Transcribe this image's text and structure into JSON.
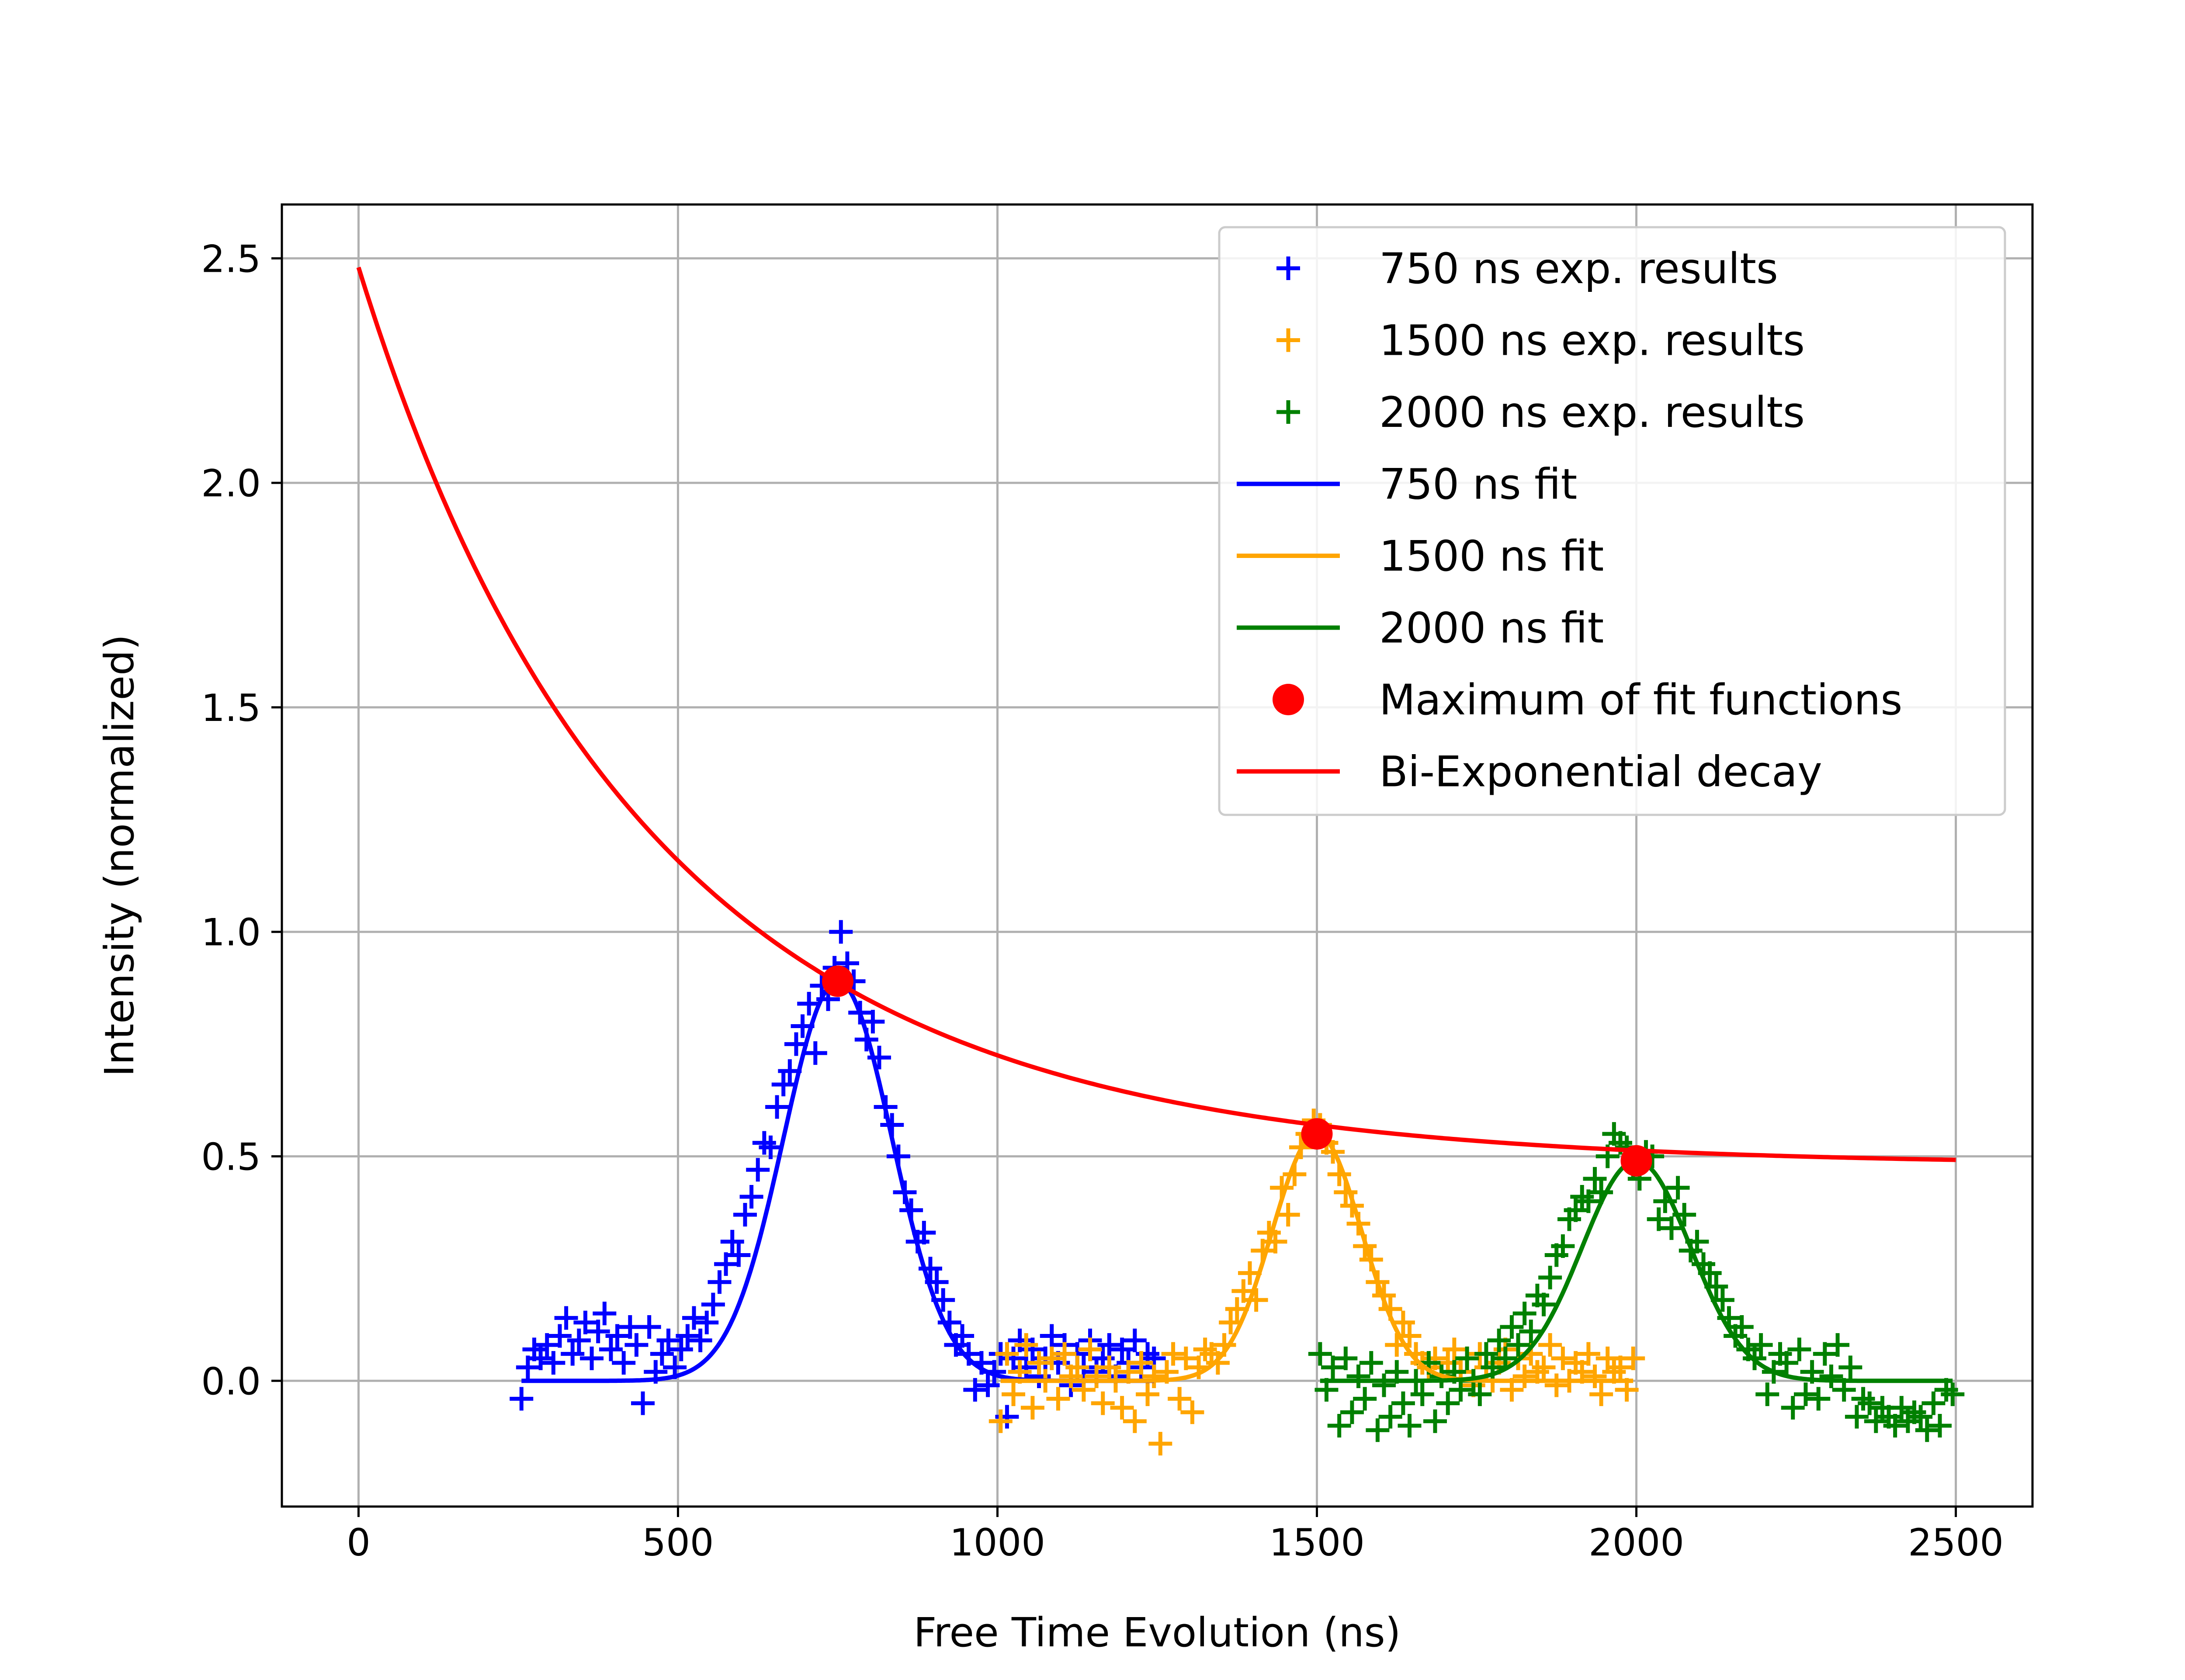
{
  "chart_data": {
    "type": "scatter",
    "title": "",
    "xlabel": "Free Time Evolution (ns)",
    "ylabel": "Intensity (normalized)",
    "xlim": [
      -120,
      2620
    ],
    "ylim": [
      -0.28,
      2.62
    ],
    "xticks": [
      0,
      500,
      1000,
      1500,
      2000,
      2500
    ],
    "xtick_labels": [
      "0",
      "500",
      "1000",
      "1500",
      "2000",
      "2500"
    ],
    "yticks": [
      0.0,
      0.5,
      1.0,
      1.5,
      2.0,
      2.5
    ],
    "ytick_labels": [
      "0.0",
      "0.5",
      "1.0",
      "1.5",
      "2.0",
      "2.5"
    ],
    "grid": true,
    "legend_position": "upper right",
    "series": [
      {
        "name": "750 ns exp. results",
        "kind": "scatter",
        "marker": "plus",
        "color": "#0000ff",
        "x": [
          255,
          265,
          275,
          285,
          295,
          305,
          315,
          325,
          335,
          345,
          355,
          365,
          375,
          385,
          395,
          405,
          415,
          425,
          435,
          445,
          455,
          465,
          475,
          485,
          495,
          505,
          515,
          525,
          535,
          545,
          555,
          565,
          575,
          585,
          595,
          605,
          615,
          625,
          635,
          645,
          655,
          665,
          675,
          685,
          695,
          705,
          715,
          725,
          735,
          745,
          755,
          765,
          775,
          785,
          795,
          805,
          815,
          825,
          835,
          845,
          855,
          865,
          875,
          885,
          895,
          905,
          915,
          925,
          935,
          945,
          955,
          965,
          975,
          985,
          995,
          1005,
          1015,
          1025,
          1035,
          1045,
          1055,
          1065,
          1075,
          1085,
          1095,
          1105,
          1115,
          1125,
          1135,
          1145,
          1155,
          1165,
          1175,
          1185,
          1195,
          1205,
          1215,
          1225,
          1235,
          1245
        ],
        "y": [
          -0.04,
          0.03,
          0.07,
          0.05,
          0.08,
          0.04,
          0.1,
          0.14,
          0.06,
          0.09,
          0.13,
          0.05,
          0.11,
          0.15,
          0.07,
          0.1,
          0.04,
          0.12,
          0.08,
          -0.05,
          0.12,
          0.02,
          0.06,
          0.09,
          0.03,
          0.07,
          0.1,
          0.14,
          0.09,
          0.13,
          0.17,
          0.22,
          0.26,
          0.31,
          0.28,
          0.37,
          0.41,
          0.47,
          0.53,
          0.52,
          0.61,
          0.66,
          0.69,
          0.75,
          0.79,
          0.84,
          0.73,
          0.88,
          0.85,
          0.92,
          1.0,
          0.93,
          0.89,
          0.82,
          0.76,
          0.8,
          0.72,
          0.61,
          0.57,
          0.5,
          0.42,
          0.38,
          0.31,
          0.33,
          0.25,
          0.22,
          0.18,
          0.13,
          0.08,
          0.1,
          0.06,
          -0.02,
          0.04,
          -0.01,
          0.02,
          0.06,
          -0.08,
          0.05,
          0.09,
          0.03,
          0.07,
          0.01,
          0.05,
          0.1,
          0.04,
          0.08,
          -0.01,
          0.06,
          0.03,
          0.09,
          0.02,
          0.05,
          0.08,
          0.01,
          0.07,
          0.04,
          0.09,
          0.03,
          0.06,
          0.05
        ]
      },
      {
        "name": "1500 ns exp. results",
        "kind": "scatter",
        "marker": "plus",
        "color": "#ffa500",
        "x": [
          1005,
          1015,
          1025,
          1035,
          1045,
          1055,
          1065,
          1075,
          1085,
          1095,
          1105,
          1115,
          1125,
          1135,
          1145,
          1155,
          1165,
          1175,
          1185,
          1195,
          1205,
          1215,
          1225,
          1235,
          1245,
          1255,
          1265,
          1275,
          1285,
          1295,
          1305,
          1315,
          1325,
          1335,
          1345,
          1355,
          1365,
          1375,
          1385,
          1395,
          1405,
          1415,
          1425,
          1435,
          1445,
          1455,
          1465,
          1475,
          1485,
          1495,
          1505,
          1515,
          1525,
          1535,
          1545,
          1555,
          1565,
          1575,
          1585,
          1595,
          1605,
          1615,
          1625,
          1635,
          1645,
          1655,
          1665,
          1675,
          1685,
          1695,
          1705,
          1715,
          1725,
          1735,
          1745,
          1755,
          1765,
          1775,
          1785,
          1795,
          1805,
          1815,
          1825,
          1835,
          1845,
          1855,
          1865,
          1875,
          1885,
          1895,
          1905,
          1915,
          1925,
          1935,
          1945,
          1955,
          1965,
          1975,
          1985,
          1995
        ],
        "y": [
          -0.09,
          0.06,
          -0.03,
          0.02,
          0.08,
          -0.06,
          0.04,
          0.0,
          0.05,
          -0.04,
          0.06,
          0.01,
          0.03,
          -0.02,
          0.07,
          0.01,
          -0.05,
          0.03,
          0.0,
          -0.06,
          0.02,
          -0.09,
          0.04,
          -0.03,
          0.01,
          -0.14,
          0.02,
          0.06,
          -0.04,
          0.05,
          -0.07,
          0.03,
          0.07,
          0.06,
          0.04,
          0.08,
          0.13,
          0.16,
          0.2,
          0.24,
          0.18,
          0.29,
          0.33,
          0.31,
          0.43,
          0.37,
          0.46,
          0.52,
          0.55,
          0.58,
          0.57,
          0.53,
          0.51,
          0.46,
          0.42,
          0.39,
          0.35,
          0.3,
          0.27,
          0.22,
          0.19,
          0.16,
          0.08,
          0.13,
          0.1,
          0.06,
          0.04,
          0.03,
          0.05,
          0.01,
          0.04,
          0.07,
          0.02,
          0.05,
          -0.01,
          0.06,
          0.03,
          0.0,
          0.04,
          0.07,
          -0.02,
          0.05,
          0.01,
          0.06,
          0.02,
          0.03,
          0.08,
          -0.01,
          0.05,
          0.0,
          0.04,
          0.02,
          0.06,
          0.01,
          -0.03,
          0.05,
          0.02,
          0.03,
          -0.02,
          0.05
        ]
      },
      {
        "name": "2000 ns exp. results",
        "kind": "scatter",
        "marker": "plus",
        "color": "#008000",
        "x": [
          1505,
          1515,
          1525,
          1535,
          1545,
          1555,
          1565,
          1575,
          1585,
          1595,
          1605,
          1615,
          1625,
          1635,
          1645,
          1655,
          1665,
          1675,
          1685,
          1695,
          1705,
          1715,
          1725,
          1735,
          1745,
          1755,
          1765,
          1775,
          1785,
          1795,
          1805,
          1815,
          1825,
          1835,
          1845,
          1855,
          1865,
          1875,
          1885,
          1895,
          1905,
          1915,
          1925,
          1935,
          1945,
          1955,
          1965,
          1975,
          1985,
          1995,
          2005,
          2015,
          2025,
          2035,
          2045,
          2055,
          2065,
          2075,
          2085,
          2095,
          2105,
          2115,
          2125,
          2135,
          2145,
          2155,
          2165,
          2175,
          2185,
          2195,
          2205,
          2215,
          2225,
          2235,
          2245,
          2255,
          2265,
          2275,
          2285,
          2295,
          2305,
          2315,
          2325,
          2335,
          2345,
          2355,
          2365,
          2375,
          2385,
          2395,
          2405,
          2415,
          2425,
          2435,
          2445,
          2455,
          2465,
          2475,
          2485,
          2495
        ],
        "y": [
          0.06,
          -0.02,
          0.03,
          -0.1,
          0.05,
          -0.07,
          0.01,
          -0.04,
          0.04,
          -0.11,
          -0.01,
          -0.08,
          0.02,
          -0.05,
          -0.1,
          0.0,
          -0.03,
          0.04,
          -0.09,
          0.01,
          -0.05,
          0.02,
          -0.02,
          0.05,
          0.0,
          -0.03,
          0.06,
          0.03,
          0.09,
          0.05,
          0.12,
          0.08,
          0.15,
          0.11,
          0.19,
          0.17,
          0.23,
          0.28,
          0.3,
          0.36,
          0.38,
          0.41,
          0.4,
          0.45,
          0.42,
          0.5,
          0.55,
          0.53,
          0.52,
          0.48,
          0.45,
          0.51,
          0.5,
          0.36,
          0.4,
          0.34,
          0.43,
          0.37,
          0.29,
          0.31,
          0.26,
          0.24,
          0.21,
          0.18,
          0.14,
          0.1,
          0.12,
          0.07,
          0.05,
          0.08,
          -0.03,
          0.02,
          0.06,
          0.04,
          -0.06,
          0.07,
          -0.03,
          0.02,
          -0.04,
          0.06,
          0.01,
          0.08,
          -0.02,
          0.03,
          -0.08,
          -0.04,
          -0.05,
          -0.09,
          -0.06,
          -0.08,
          -0.1,
          -0.06,
          -0.09,
          -0.07,
          -0.08,
          -0.11,
          -0.05,
          -0.1,
          -0.02,
          -0.03
        ]
      },
      {
        "name": "750 ns fit",
        "kind": "gaussian",
        "color": "#0000ff",
        "amplitude": 0.89,
        "center": 750,
        "sigma": 85,
        "x_range": [
          255,
          1245
        ]
      },
      {
        "name": "1500 ns fit",
        "kind": "gaussian",
        "color": "#ffa500",
        "amplitude": 0.55,
        "center": 1500,
        "sigma": 70,
        "x_range": [
          1005,
          1995
        ]
      },
      {
        "name": "2000 ns fit",
        "kind": "gaussian",
        "color": "#008000",
        "amplitude": 0.49,
        "center": 2000,
        "sigma": 85,
        "x_range": [
          1505,
          2495
        ]
      },
      {
        "name": "Maximum of fit functions",
        "kind": "points",
        "marker": "circle",
        "color": "#ff0000",
        "x": [
          750,
          1500,
          2000
        ],
        "y": [
          0.89,
          0.55,
          0.49
        ]
      },
      {
        "name": "Bi-Exponential decay",
        "kind": "biexponential",
        "color": "#ff0000",
        "formula": "y = 0.2*exp(-x/200) + 1.8*exp(-x/500) + 0.48",
        "a1": 0.2,
        "tau1": 200,
        "a2": 1.8,
        "tau2": 500,
        "c": 0.48,
        "x_range": [
          0,
          2500
        ]
      }
    ]
  }
}
